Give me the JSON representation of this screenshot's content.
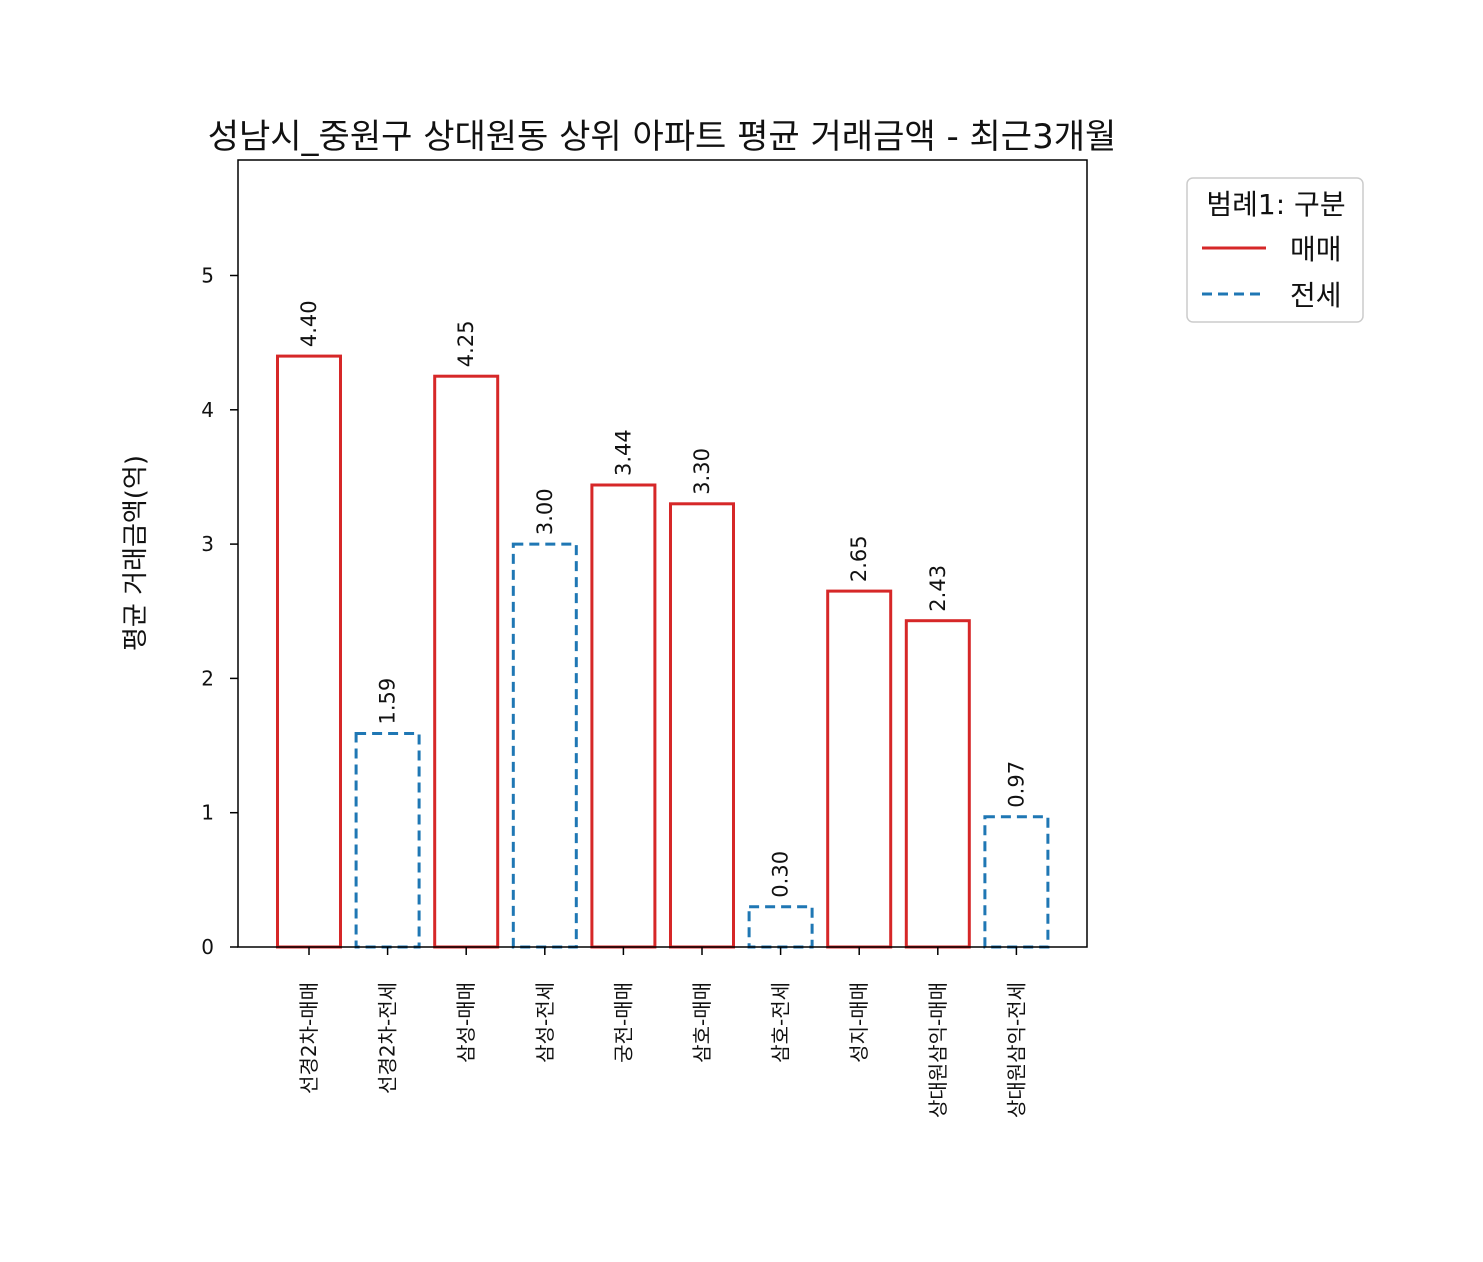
{
  "chart_data": {
    "type": "bar",
    "title": "성남시_중원구 상대원동 상위 아파트 평균 거래금액 - 최근3개월",
    "xlabel": "",
    "ylabel": "평균 거래금액(억)",
    "ylim": [
      0,
      5.86
    ],
    "yticks": [
      0,
      1,
      2,
      3,
      4,
      5
    ],
    "grid": false,
    "legend": {
      "title": "범례1: 구분",
      "placement": "outside-top-right",
      "entries": [
        {
          "label": "매매",
          "color": "#d62728",
          "dash": "solid"
        },
        {
          "label": "전세",
          "color": "#1f77b4",
          "dash": "dashed"
        }
      ]
    },
    "categories": [
      "선경2차-매매",
      "선경2차-전세",
      "삼성-매매",
      "삼성-전세",
      "궁전-매매",
      "삼호-매매",
      "삼호-전세",
      "성지-매매",
      "상대원삼익-매매",
      "상대원삼익-전세"
    ],
    "values": [
      4.4,
      1.59,
      4.25,
      3.0,
      3.44,
      3.3,
      0.3,
      2.65,
      2.43,
      0.97
    ],
    "value_labels": [
      "4.40",
      "1.59",
      "4.25",
      "3.00",
      "3.44",
      "3.30",
      "0.30",
      "2.65",
      "2.43",
      "0.97"
    ],
    "series_of_bar": [
      "매매",
      "전세",
      "매매",
      "전세",
      "매매",
      "매매",
      "전세",
      "매매",
      "매매",
      "전세"
    ]
  }
}
